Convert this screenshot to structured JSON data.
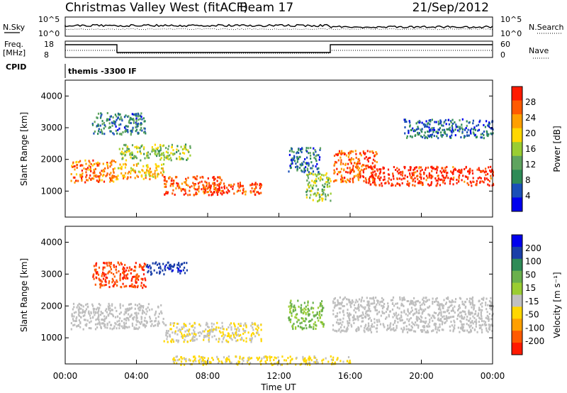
{
  "header": {
    "title": "Christmas Valley West (fitACF)",
    "beam": "Beam 17",
    "date": "21/Sep/2012"
  },
  "aux": {
    "nsky_label": "N.Sky",
    "nsearch_label": "N.Search",
    "nsky_ticks": [
      "10^5",
      "10^0"
    ],
    "nsearch_ticks": [
      "10^5",
      "10^0"
    ],
    "freq_label": [
      "Freq.",
      "[MHz]"
    ],
    "freq_ticks": [
      "18",
      "8"
    ],
    "nave_label": "Nave",
    "nave_ticks": [
      "60",
      "0"
    ],
    "cpid_label": "CPID",
    "cpid_value": "themis -3300 IF"
  },
  "colors": {
    "power_scale": [
      "#0000ee",
      "#1a4fb8",
      "#2e8b57",
      "#5fa45f",
      "#9acd32",
      "#ffd700",
      "#ff9f00",
      "#ff5a00",
      "#ff1a00"
    ],
    "velocity_scale": [
      "#0000ee",
      "#1a3fa8",
      "#2e8b57",
      "#6ab04c",
      "#9acd32",
      "#c0c0c0",
      "#ffd700",
      "#ff9f00",
      "#ff5a00",
      "#ff1a00"
    ],
    "ground_scatter": "#bebebe"
  },
  "chart_data": [
    {
      "type": "heatmap",
      "panel": "power",
      "xlabel": "",
      "ylabel": "Slant Range [km]",
      "xlim": [
        0,
        24
      ],
      "ylim": [
        180,
        4500
      ],
      "yticks": [
        "4000",
        "3000",
        "2000",
        "1000"
      ],
      "colorbar": {
        "label": "Power [dB]",
        "ticks": [
          "28",
          "24",
          "20",
          "16",
          "12",
          "8",
          "4"
        ],
        "range": [
          0,
          30
        ]
      },
      "echo_regions": [
        {
          "t": [
            0.3,
            2.8
          ],
          "r": [
            1300,
            2000
          ],
          "value": 24
        },
        {
          "t": [
            2.8,
            5.5
          ],
          "r": [
            1400,
            1900
          ],
          "value": 20
        },
        {
          "t": [
            5.5,
            8.8
          ],
          "r": [
            900,
            1500
          ],
          "value": 26
        },
        {
          "t": [
            8.0,
            11.0
          ],
          "r": [
            900,
            1300
          ],
          "value": 27
        },
        {
          "t": [
            1.5,
            4.5
          ],
          "r": [
            2800,
            3500
          ],
          "value": 8
        },
        {
          "t": [
            3.0,
            7.0
          ],
          "r": [
            2000,
            2500
          ],
          "value": 14
        },
        {
          "t": [
            12.5,
            14.3
          ],
          "r": [
            1600,
            2400
          ],
          "value": 7
        },
        {
          "t": [
            13.5,
            14.9
          ],
          "r": [
            700,
            1600
          ],
          "value": 14
        },
        {
          "t": [
            15.0,
            17.5
          ],
          "r": [
            1300,
            2300
          ],
          "value": 25
        },
        {
          "t": [
            17.0,
            24.0
          ],
          "r": [
            1200,
            1800
          ],
          "value": 28
        },
        {
          "t": [
            19.0,
            24.0
          ],
          "r": [
            2700,
            3300
          ],
          "value": 6
        }
      ]
    },
    {
      "type": "heatmap",
      "panel": "velocity",
      "xlabel": "Time UT",
      "ylabel": "Slant Range [km]",
      "xlim": [
        0,
        24
      ],
      "ylim": [
        180,
        4500
      ],
      "xticks": [
        "00:00",
        "04:00",
        "08:00",
        "12:00",
        "16:00",
        "20:00",
        "00:00"
      ],
      "yticks": [
        "4000",
        "3000",
        "2000",
        "1000"
      ],
      "colorbar": {
        "label": "Velocity [m s⁻¹]",
        "ticks": [
          "200",
          "100",
          "50",
          "15",
          "-15",
          "-50",
          "-100",
          "-200"
        ],
        "range": [
          -250,
          250
        ]
      },
      "echo_regions": [
        {
          "t": [
            0.3,
            5.5
          ],
          "r": [
            1300,
            2100
          ],
          "value": 0,
          "ground_scatter": true
        },
        {
          "t": [
            5.5,
            11.0
          ],
          "r": [
            900,
            1500
          ],
          "value": -45
        },
        {
          "t": [
            15.0,
            24.0
          ],
          "r": [
            1200,
            2300
          ],
          "value": 0,
          "ground_scatter": true
        },
        {
          "t": [
            1.5,
            4.5
          ],
          "r": [
            2600,
            3400
          ],
          "value": -200
        },
        {
          "t": [
            4.5,
            6.8
          ],
          "r": [
            3000,
            3400
          ],
          "value": 180
        },
        {
          "t": [
            12.5,
            14.5
          ],
          "r": [
            1300,
            2200
          ],
          "value": 60
        },
        {
          "t": [
            6.0,
            16.0
          ],
          "r": [
            180,
            450
          ],
          "value": -60
        }
      ]
    }
  ]
}
